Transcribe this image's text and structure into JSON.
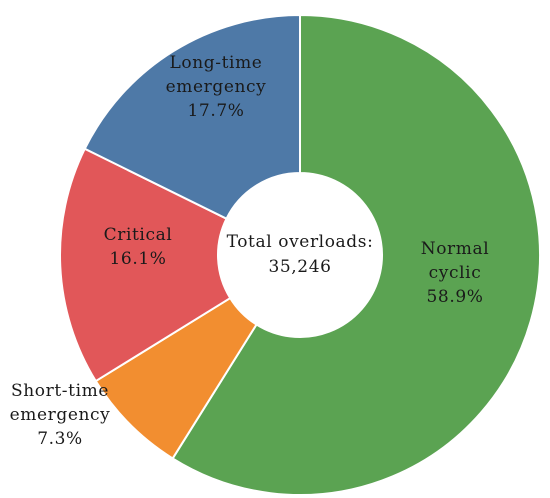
{
  "chart_data": {
    "type": "pie",
    "variant": "donut",
    "center_label": {
      "line1": "Total overloads:",
      "line2": "35,246"
    },
    "slices": [
      {
        "name": "Normal cyclic",
        "label_lines": [
          "Normal",
          "cyclic"
        ],
        "value": 58.9,
        "value_label": "58.9%",
        "color": "#5ba352"
      },
      {
        "name": "Short-time emergency",
        "label_lines": [
          "Short-time",
          "emergency"
        ],
        "value": 7.3,
        "value_label": "7.3%",
        "color": "#f28e30"
      },
      {
        "name": "Critical",
        "label_lines": [
          "Critical"
        ],
        "value": 16.1,
        "value_label": "16.1%",
        "color": "#e15759"
      },
      {
        "name": "Long-time emergency",
        "label_lines": [
          "Long-time",
          "emergency"
        ],
        "value": 17.7,
        "value_label": "17.7%",
        "color": "#4e79a7"
      }
    ]
  }
}
